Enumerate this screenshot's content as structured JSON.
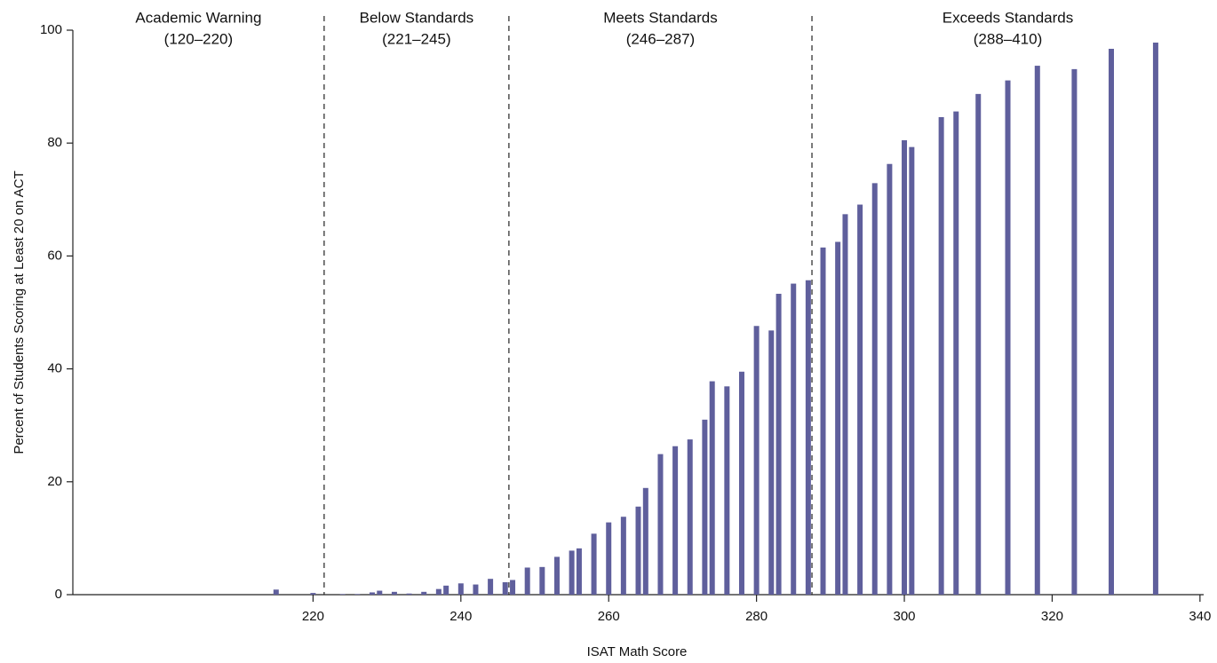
{
  "chart_data": {
    "type": "bar",
    "x_label": "ISAT Math Score",
    "y_label": "Percent of Students Scoring at Least 20 on ACT",
    "x": [
      215,
      220,
      224,
      226,
      228,
      229,
      231,
      233,
      235,
      237,
      238,
      240,
      242,
      244,
      246,
      247,
      249,
      251,
      253,
      255,
      256,
      258,
      260,
      262,
      264,
      265,
      267,
      269,
      271,
      273,
      274,
      276,
      278,
      280,
      282,
      283,
      285,
      287,
      289,
      291,
      292,
      294,
      296,
      298,
      300,
      301,
      305,
      307,
      310,
      314,
      318,
      323,
      328,
      334
    ],
    "values": [
      0.9,
      0.3,
      0.1,
      0.1,
      0.4,
      0.7,
      0.5,
      0.2,
      0.5,
      1.0,
      1.6,
      2.0,
      1.8,
      2.8,
      2.2,
      2.6,
      4.8,
      4.9,
      6.7,
      7.8,
      8.2,
      10.8,
      12.8,
      13.8,
      15.6,
      18.9,
      24.9,
      26.3,
      27.5,
      31.0,
      37.8,
      36.9,
      39.5,
      47.6,
      46.8,
      53.3,
      55.1,
      55.7,
      61.5,
      62.5,
      67.4,
      69.1,
      72.9,
      76.3,
      80.5,
      79.3,
      84.6,
      85.6,
      88.7,
      91.1,
      93.7,
      93.1,
      96.7,
      97.8
    ],
    "color": "#5f5f9c",
    "xlim": [
      187.5,
      340.5
    ],
    "xticks": [
      220,
      240,
      260,
      280,
      300,
      320,
      340
    ],
    "ylim": [
      0,
      100
    ],
    "yticks": [
      0,
      20,
      40,
      60,
      80,
      100
    ],
    "dividers": [
      221.5,
      246.5,
      287.5
    ],
    "bands": [
      {
        "label": "Academic Warning",
        "range": "(120–220)"
      },
      {
        "label": "Below Standards",
        "range": "(221–245)"
      },
      {
        "label": "Meets Standards",
        "range": "(246–287)"
      },
      {
        "label": "Exceeds Standards",
        "range": "(288–410)"
      }
    ]
  }
}
